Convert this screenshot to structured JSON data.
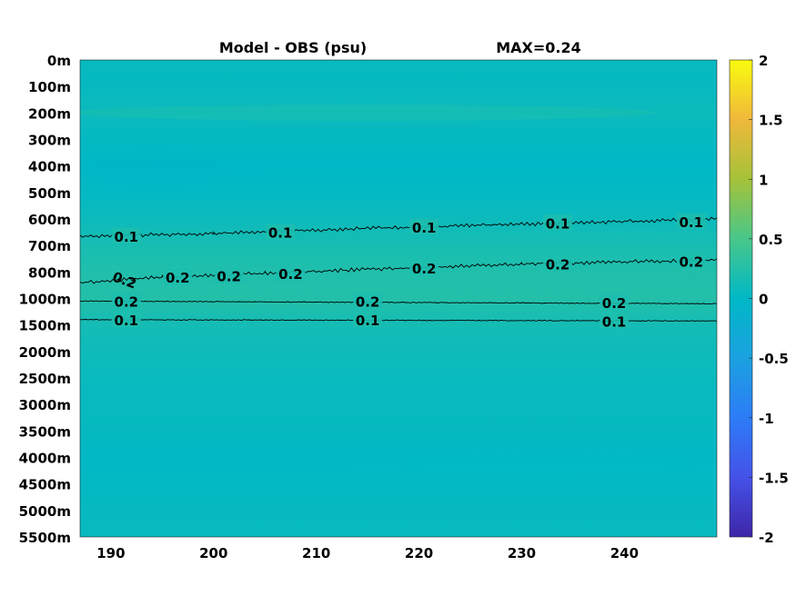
{
  "chart_data": {
    "type": "heatmap",
    "title": "Model - OBS (psu)",
    "annotation": "MAX=0.24",
    "xlabel": "",
    "ylabel": "",
    "x_ticks": [
      190,
      200,
      210,
      220,
      230,
      240
    ],
    "xlim": [
      187,
      249
    ],
    "y_tick_labels": [
      "0m",
      "100m",
      "200m",
      "300m",
      "400m",
      "500m",
      "600m",
      "700m",
      "800m",
      "1000m",
      "1500m",
      "2000m",
      "2500m",
      "3000m",
      "3500m",
      "4000m",
      "4500m",
      "5000m",
      "5500m"
    ],
    "colorbar": {
      "colormap": "parula",
      "range": [
        -2,
        2
      ],
      "ticks": [
        "2",
        "1.5",
        "1",
        "0.5",
        "0",
        "-0.5",
        "-1",
        "-1.5",
        "-2"
      ]
    },
    "field_rows": [
      {
        "depth": "0m",
        "value": 0.05
      },
      {
        "depth": "100m",
        "value": 0.04
      },
      {
        "depth": "200m",
        "value": 0.08
      },
      {
        "depth": "300m",
        "value": 0.03
      },
      {
        "depth": "400m",
        "value": 0.0
      },
      {
        "depth": "500m",
        "value": 0.02
      },
      {
        "depth": "600m",
        "value": 0.08
      },
      {
        "depth": "700m",
        "value": 0.17
      },
      {
        "depth": "800m",
        "value": 0.22
      },
      {
        "depth": "1000m",
        "value": 0.24
      },
      {
        "depth": "1500m",
        "value": 0.14
      },
      {
        "depth": "2000m",
        "value": 0.1
      },
      {
        "depth": "2500m",
        "value": 0.06
      },
      {
        "depth": "3000m",
        "value": 0.05
      },
      {
        "depth": "3500m",
        "value": 0.04
      },
      {
        "depth": "4000m",
        "value": 0.01
      },
      {
        "depth": "4500m",
        "value": 0.02
      },
      {
        "depth": "5000m",
        "value": 0.04
      },
      {
        "depth": "5500m",
        "value": 0.05
      }
    ],
    "contours": [
      {
        "level": 0.1,
        "labels": [
          {
            "text": "0.1",
            "x": 191.5,
            "y": 6.65
          },
          {
            "text": "0.1",
            "x": 206.5,
            "y": 6.5
          },
          {
            "text": "0.1",
            "x": 220.5,
            "y": 6.3
          },
          {
            "text": "0.1",
            "x": 233.5,
            "y": 6.15
          },
          {
            "text": "0.1",
            "x": 246.5,
            "y": 6.1
          }
        ],
        "path": [
          [
            187,
            6.65
          ],
          [
            200,
            6.55
          ],
          [
            215,
            6.35
          ],
          [
            230,
            6.2
          ],
          [
            249,
            6.0
          ]
        ]
      },
      {
        "level": 0.2,
        "labels": [
          {
            "text": "0.2",
            "x": 196.5,
            "y": 8.2
          },
          {
            "text": "0.2",
            "x": 201.5,
            "y": 8.15
          },
          {
            "text": "0.2",
            "x": 207.5,
            "y": 8.05
          },
          {
            "text": "0.2",
            "x": 220.5,
            "y": 7.85
          },
          {
            "text": "0.2",
            "x": 233.5,
            "y": 7.7
          },
          {
            "text": "0.2",
            "x": 246.5,
            "y": 7.6
          }
        ],
        "path": [
          [
            187,
            8.4
          ],
          [
            195,
            8.2
          ],
          [
            205,
            8.05
          ],
          [
            215,
            7.9
          ],
          [
            230,
            7.7
          ],
          [
            249,
            7.55
          ]
        ]
      },
      {
        "level": 0.2,
        "labels": [
          {
            "text": "0.2",
            "x": 191.5,
            "y": 9.1
          },
          {
            "text": "0.2",
            "x": 215.0,
            "y": 9.1
          },
          {
            "text": "0.2",
            "x": 239.0,
            "y": 9.15
          }
        ],
        "path": [
          [
            187,
            9.1
          ],
          [
            249,
            9.2
          ]
        ]
      },
      {
        "level": 0.1,
        "labels": [
          {
            "text": "0.1",
            "x": 191.5,
            "y": 9.8
          },
          {
            "text": "0.1",
            "x": 215.0,
            "y": 9.8
          },
          {
            "text": "0.1",
            "x": 239.0,
            "y": 9.85
          }
        ],
        "path": [
          [
            187,
            9.8
          ],
          [
            249,
            9.85
          ]
        ]
      }
    ],
    "stray_labels": [
      {
        "text": "0.2",
        "x": 191.3,
        "y": 8.35
      }
    ]
  }
}
